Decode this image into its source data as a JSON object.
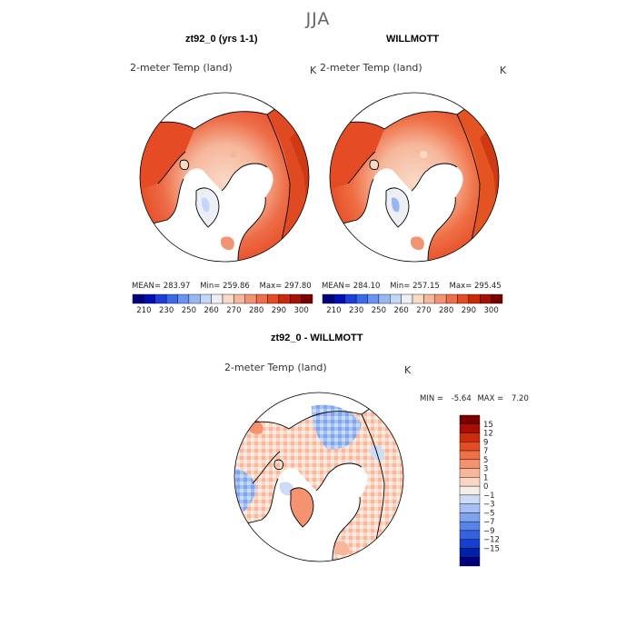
{
  "figure": {
    "title": "JJA"
  },
  "panels": [
    {
      "title": "zt92_0 (yrs 1-1)",
      "variable": "2-meter Temp (land)",
      "units": "K",
      "stats": {
        "mean_label": "MEAN=",
        "mean": "283.97",
        "min_label": "Min=",
        "min": "259.86",
        "max_label": "Max=",
        "max": "297.80"
      }
    },
    {
      "title": "WILLMOTT",
      "variable": "2-meter Temp (land)",
      "units": "K",
      "stats": {
        "mean_label": "MEAN=",
        "mean": "284.10",
        "min_label": "Min=",
        "min": "257.15",
        "max_label": "Max=",
        "max": "295.45"
      }
    },
    {
      "title": "zt92_0 - WILLMOTT",
      "variable": "2-meter Temp (land)",
      "units": "K",
      "stats": {
        "min_label": "MIN =",
        "min": "-5.64",
        "max_label": "MAX =",
        "max": "7.20"
      }
    }
  ],
  "colorbar_abs": {
    "tick_labels": [
      "210",
      "230",
      "250",
      "260",
      "270",
      "280",
      "290",
      "300"
    ],
    "colors": [
      "#00007a",
      "#0010b0",
      "#1b3fd8",
      "#3a6ae8",
      "#6a93ef",
      "#97b6f4",
      "#c4d6f8",
      "#eeeef6",
      "#fad9c7",
      "#f6b79c",
      "#f29473",
      "#ed6e49",
      "#e54c26",
      "#c92b0a",
      "#a41204",
      "#7a0000"
    ]
  },
  "colorbar_diff": {
    "tick_labels": [
      "15",
      "12",
      "9",
      "7",
      "5",
      "3",
      "1",
      "0",
      "−1",
      "−3",
      "−5",
      "−7",
      "−9",
      "−12",
      "−15"
    ],
    "colors": [
      "#7a0000",
      "#a80f04",
      "#cc2d0a",
      "#e34d24",
      "#ef7046",
      "#f59270",
      "#f8b69b",
      "#fbd6c4",
      "#f5eee8",
      "#ccdcf7",
      "#a5c1f4",
      "#7fa3ef",
      "#5884e9",
      "#3463e2",
      "#1540cc",
      "#0020a8",
      "#00007c"
    ]
  },
  "chart_data": {
    "type": "map",
    "title": "JJA",
    "projection": "north polar stereographic",
    "maps": [
      {
        "title": "zt92_0 (yrs 1-1)",
        "field": "2-meter Temp (land)",
        "units": "K",
        "mean": 283.97,
        "min": 259.86,
        "max": 297.8,
        "levels": [
          210,
          230,
          250,
          260,
          270,
          280,
          290,
          300
        ]
      },
      {
        "title": "WILLMOTT",
        "field": "2-meter Temp (land)",
        "units": "K",
        "mean": 284.1,
        "min": 257.15,
        "max": 295.45,
        "levels": [
          210,
          230,
          250,
          260,
          270,
          280,
          290,
          300
        ]
      },
      {
        "title": "zt92_0 - WILLMOTT",
        "field": "2-meter Temp (land)",
        "units": "K",
        "min": -5.64,
        "max": 7.2,
        "levels": [
          -15,
          -12,
          -9,
          -7,
          -5,
          -3,
          -1,
          0,
          1,
          3,
          5,
          7,
          9,
          12,
          15
        ]
      }
    ]
  }
}
